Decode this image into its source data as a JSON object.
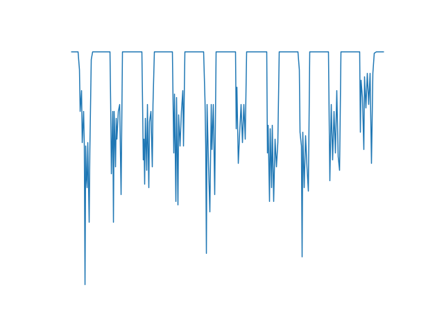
{
  "chart_data": {
    "type": "line",
    "color": "#1f77b4",
    "x": [
      0,
      10,
      12,
      13,
      15,
      16,
      18,
      19,
      20,
      21,
      22,
      23,
      24,
      26,
      27,
      29,
      31,
      56,
      57,
      58,
      60,
      61,
      62,
      64,
      65,
      66,
      68,
      70,
      72,
      74,
      102,
      103,
      104,
      105,
      106,
      107,
      109,
      110,
      112,
      113,
      115,
      117,
      118,
      120,
      146,
      147,
      148,
      149,
      151,
      152,
      154,
      155,
      157,
      159,
      161,
      162,
      164,
      191,
      193,
      194,
      195,
      196,
      198,
      200,
      202,
      203,
      205,
      207,
      209,
      237,
      238,
      239,
      241,
      243,
      245,
      247,
      249,
      251,
      253,
      282,
      283,
      284,
      286,
      287,
      289,
      290,
      292,
      294,
      296,
      298,
      300,
      327,
      329,
      330,
      332,
      333,
      334,
      336,
      338,
      340,
      342,
      344,
      371,
      372,
      373,
      375,
      377,
      379,
      381,
      383,
      385,
      387,
      389,
      416,
      417,
      418,
      420,
      422,
      423,
      425,
      427,
      429,
      431,
      433,
      435,
      437,
      440,
      451
    ],
    "values": [
      336,
      336,
      310,
      250,
      280,
      205,
      250,
      200,
      0,
      200,
      155,
      140,
      205,
      90,
      195,
      325,
      336,
      336,
      260,
      160,
      250,
      90,
      250,
      170,
      240,
      210,
      250,
      260,
      130,
      336,
      336,
      260,
      180,
      210,
      145,
      240,
      165,
      260,
      140,
      235,
      250,
      170,
      260,
      336,
      336,
      260,
      190,
      275,
      120,
      270,
      115,
      245,
      200,
      250,
      280,
      200,
      336,
      336,
      265,
      200,
      45,
      260,
      175,
      105,
      260,
      195,
      260,
      130,
      336,
      336,
      225,
      285,
      175,
      220,
      260,
      205,
      260,
      210,
      336,
      336,
      190,
      230,
      120,
      225,
      140,
      230,
      120,
      210,
      170,
      205,
      336,
      336,
      310,
      220,
      200,
      40,
      220,
      140,
      215,
      170,
      135,
      336,
      336,
      240,
      150,
      260,
      180,
      250,
      190,
      280,
      185,
      165,
      336,
      336,
      220,
      295,
      270,
      195,
      300,
      255,
      305,
      260,
      305,
      175,
      305,
      334,
      336,
      336
    ],
    "xlim": [
      -22.55,
      473.55
    ],
    "ylim": [
      -16.8,
      352.8
    ]
  }
}
